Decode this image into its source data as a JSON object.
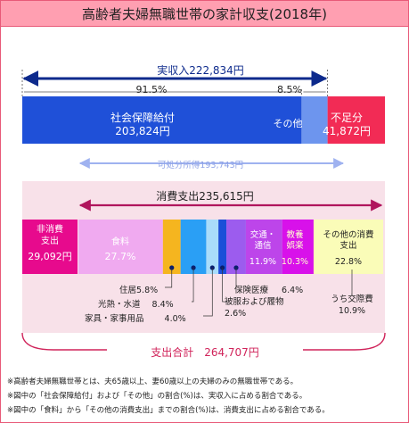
{
  "title": "高齢者夫婦無職世帯の家計収支(2018年)",
  "colors": {
    "title_bg": "#ff9fb1",
    "title_border": "#e85a78",
    "income_arrow": "#0d2a8c",
    "social_security": "#1f50d8",
    "other_income": "#6d95ee",
    "deficit": "#f22b55",
    "disposable": "#9fb2f0",
    "spending_band": "#f8e1e9",
    "spending_arrow": "#b0155d",
    "non_consumption": "#e70a8d",
    "food": "#f0aaf0",
    "housing": "#f5b51f",
    "utilities": "#2a9ff5",
    "furniture": "#a9dcfa",
    "clothing": "#1a4fd8",
    "medical": "#9c5cee",
    "transport": "#bd45ea",
    "culture": "#d811ea",
    "other_spending": "#fafcb8",
    "total_bracket": "#d0235a",
    "dot": "#0a1e6e"
  },
  "chart_data": {
    "type": "bar",
    "title": "高齢者夫婦無職世帯の家計収支(2018年)",
    "income": {
      "label": "実収入222,834円",
      "total": 222834,
      "social_security_pct_label": "91.5%",
      "other_pct_label": "8.5%",
      "segments": [
        {
          "key": "social_security",
          "name": "社会保障給付",
          "value": 203824,
          "value_label": "203,824円",
          "color": "#1f50d8"
        },
        {
          "key": "other_income",
          "name": "その他",
          "value": 19010,
          "value_label": "",
          "color": "#6d95ee"
        }
      ],
      "deficit": {
        "name": "不足分",
        "value": 41872,
        "value_label": "41,872円",
        "color": "#f22b55"
      },
      "disposable": {
        "label": "可処分所得193,743円",
        "value": 193743
      }
    },
    "spending": {
      "label": "消費支出235,615円",
      "value": 235615,
      "non_consumption": {
        "name": "非消費支出",
        "value": 29092,
        "value_label": "29,092円",
        "color": "#e70a8d"
      },
      "categories": [
        {
          "key": "food",
          "name": "食料",
          "pct": 27.7,
          "pct_label": "27.7%",
          "color": "#f0aaf0",
          "inside": true
        },
        {
          "key": "housing",
          "name": "住居",
          "pct": 5.8,
          "pct_label": "5.8%",
          "color": "#f5b51f",
          "inside": false
        },
        {
          "key": "utilities",
          "name": "光熱・水道",
          "pct": 8.4,
          "pct_label": "8.4%",
          "color": "#2a9ff5",
          "inside": false
        },
        {
          "key": "furniture",
          "name": "家具・家事用品",
          "pct": 4.0,
          "pct_label": "4.0%",
          "color": "#a9dcfa",
          "inside": false
        },
        {
          "key": "clothing",
          "name": "被服および履物",
          "pct": 2.6,
          "pct_label": "2.6%",
          "color": "#1a4fd8",
          "inside": false
        },
        {
          "key": "medical",
          "name": "保険医療",
          "pct": 6.4,
          "pct_label": "6.4%",
          "color": "#9c5cee",
          "inside": false
        },
        {
          "key": "transport",
          "name": "交通・通信",
          "pct": 11.9,
          "pct_label": "11.9%",
          "color": "#bd45ea",
          "inside": true
        },
        {
          "key": "culture",
          "name": "教養娯楽",
          "pct": 10.3,
          "pct_label": "10.3%",
          "color": "#d811ea",
          "inside": true
        },
        {
          "key": "other_spending",
          "name": "その他の消費支出",
          "pct": 22.8,
          "pct_label": "22.8%",
          "color": "#fafcb8",
          "inside": true
        }
      ],
      "sub_item": {
        "name": "うち交際費",
        "pct": 10.9,
        "pct_label": "10.9%"
      }
    },
    "total_spending": {
      "label": "支出合計　264,707円",
      "value": 264707
    }
  },
  "notes": [
    "※高齢者夫婦無職世帯とは、夫65歳以上、妻60歳以上の夫婦のみの無職世帯である。",
    "※図中の「社会保障給付」および「その他」の割合(%)は、実収入に占める割合である。",
    "※図中の「食料」から「その他の消費支出」までの割合(%)は、消費支出に占める割合である。"
  ]
}
